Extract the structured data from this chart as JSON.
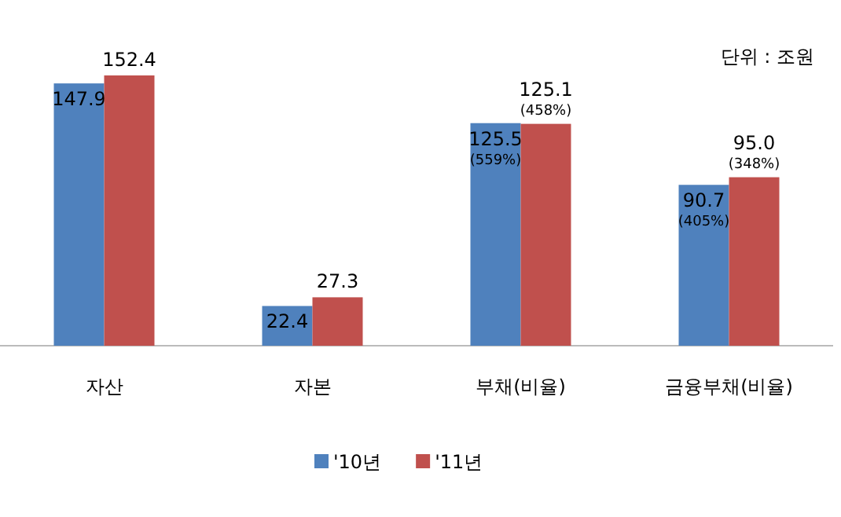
{
  "chart_data": {
    "type": "bar",
    "categories": [
      "자산",
      "자본",
      "부채(비율)",
      "금융부채(비율)"
    ],
    "series": [
      {
        "name": "'10년",
        "color": "#4f81bd",
        "values": [
          147.9,
          22.4,
          125.5,
          90.7
        ],
        "value_labels": [
          "147.9",
          "22.4",
          "125.5\n(559%)",
          "90.7\n(405%)"
        ]
      },
      {
        "name": "'11년",
        "color": "#c0504d",
        "values": [
          152.4,
          27.3,
          125.1,
          95.0
        ],
        "value_labels": [
          "152.4",
          "27.3",
          "125.1\n(458%)",
          "95.0\n(348%)"
        ]
      }
    ],
    "annotations": [
      "단위 : 조원"
    ],
    "legend": "bottom"
  }
}
